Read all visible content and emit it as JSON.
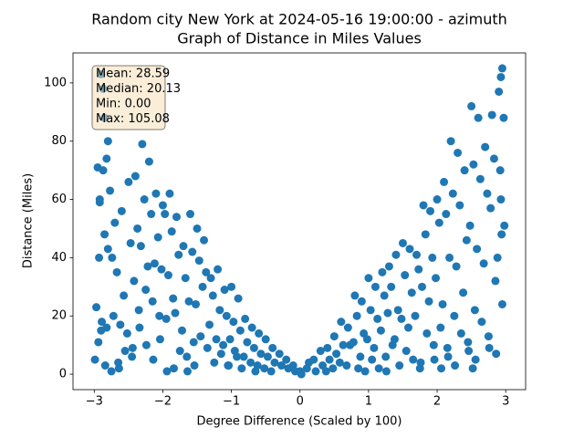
{
  "chart_data": {
    "type": "scatter",
    "title": "Random city New York at 2024-05-16 19:00:00  - azimuth",
    "subtitle": "Graph of Distance in Miles Values",
    "xlabel": "Degree Difference (Scaled by 100)",
    "ylabel": "Distance (Miles)",
    "annotation_lines": [
      "Mean: 28.59",
      "Median: 20.13",
      "Min: 0.00",
      "Max: 105.08"
    ],
    "color": "#1f77b4",
    "xlim": [
      -3.31,
      3.29
    ],
    "ylim": [
      -5.3,
      110.3
    ],
    "xticks": [
      {
        "value": -3,
        "label": "−3"
      },
      {
        "value": -2,
        "label": "−2"
      },
      {
        "value": -1,
        "label": "−1"
      },
      0,
      1,
      2,
      3
    ],
    "yticks": [
      0,
      20,
      40,
      60,
      80,
      100
    ],
    "x": [
      -2.95,
      -2.92,
      -2.97,
      -2.9,
      -2.99,
      -2.94,
      -2.93,
      -2.9,
      -2.87,
      -2.92,
      -2.85,
      -2.85,
      -2.82,
      -2.87,
      -2.8,
      -2.89,
      -2.84,
      -2.8,
      -2.77,
      -2.82,
      -2.75,
      -2.7,
      -2.67,
      -2.72,
      -2.65,
      -2.74,
      -2.6,
      -2.57,
      -2.62,
      -2.55,
      -2.64,
      -2.5,
      -2.47,
      -2.52,
      -2.45,
      -2.4,
      -2.37,
      -2.42,
      -2.35,
      -2.44,
      -2.3,
      -2.27,
      -2.32,
      -2.25,
      -2.34,
      -2.2,
      -2.17,
      -2.22,
      -2.15,
      -2.24,
      -2.1,
      -2.07,
      -2.12,
      -2.05,
      -2.14,
      -2.0,
      -1.97,
      -2.02,
      -1.95,
      -2.04,
      -1.9,
      -1.87,
      -1.92,
      -1.85,
      -1.94,
      -1.8,
      -1.77,
      -1.82,
      -1.75,
      -1.84,
      -1.7,
      -1.67,
      -1.72,
      -1.65,
      -1.6,
      -1.57,
      -1.62,
      -1.55,
      -1.64,
      -1.5,
      -1.47,
      -1.52,
      -1.45,
      -1.54,
      -1.4,
      -1.37,
      -1.42,
      -1.35,
      -1.3,
      -1.27,
      -1.32,
      -1.25,
      -1.2,
      -1.17,
      -1.22,
      -1.15,
      -1.1,
      -1.07,
      -1.12,
      -1.05,
      -1.0,
      -0.97,
      -1.02,
      -0.95,
      -1.04,
      -0.9,
      -0.87,
      -0.92,
      -0.85,
      -0.8,
      -0.77,
      -0.82,
      -0.7,
      -0.67,
      -0.72,
      -0.65,
      -0.6,
      -0.57,
      -0.62,
      -0.5,
      -0.47,
      -0.52,
      -0.4,
      -0.37,
      -0.42,
      -0.3,
      -0.27,
      -0.2,
      -0.17,
      -0.1,
      -0.07,
      0,
      0.02,
      0.1,
      0.13,
      0.2,
      0.23,
      0.3,
      0.33,
      0.4,
      0.43,
      0.38,
      0.5,
      0.53,
      0.48,
      0.6,
      0.63,
      0.58,
      0.7,
      0.73,
      0.68,
      0.8,
      0.83,
      0.78,
      0.85,
      0.9,
      0.93,
      0.88,
      0.95,
      1.0,
      1.03,
      0.98,
      1.05,
      1.1,
      1.13,
      1.08,
      1.15,
      1.2,
      1.23,
      1.18,
      1.25,
      1.3,
      1.33,
      1.28,
      1.35,
      1.26,
      1.4,
      1.43,
      1.38,
      1.45,
      1.5,
      1.53,
      1.48,
      1.55,
      1.6,
      1.63,
      1.58,
      1.65,
      1.7,
      1.73,
      1.68,
      1.75,
      1.8,
      1.83,
      1.78,
      1.85,
      1.76,
      1.9,
      1.93,
      1.88,
      1.95,
      2.0,
      2.03,
      1.98,
      2.05,
      1.96,
      2.1,
      2.13,
      2.08,
      2.15,
      2.06,
      2.2,
      2.23,
      2.18,
      2.25,
      2.16,
      2.3,
      2.33,
      2.28,
      2.35,
      2.26,
      2.4,
      2.43,
      2.38,
      2.45,
      2.5,
      2.53,
      2.48,
      2.55,
      2.46,
      2.52,
      2.6,
      2.63,
      2.58,
      2.65,
      2.56,
      2.7,
      2.73,
      2.68,
      2.75,
      2.8,
      2.83,
      2.78,
      2.85,
      2.76,
      2.9,
      2.93,
      2.88,
      2.95,
      2.86,
      2.95,
      2.93,
      2.97,
      2.92,
      2.98,
      2.94
    ],
    "y": [
      71,
      60,
      23,
      15,
      5,
      11,
      40,
      103,
      98,
      59,
      48,
      88,
      74,
      70,
      43,
      18,
      3,
      80,
      63,
      16,
      1,
      52,
      35,
      20,
      4,
      40,
      56,
      27,
      17,
      8,
      2,
      66,
      45,
      14,
      6,
      68,
      50,
      32,
      22,
      9,
      79,
      60,
      44,
      29,
      16,
      73,
      55,
      37,
      25,
      10,
      62,
      47,
      38,
      20,
      5,
      58,
      55,
      36,
      19,
      12,
      62,
      49,
      34,
      26,
      1,
      54,
      41,
      21,
      8,
      2,
      44,
      33,
      15,
      6,
      55,
      42,
      25,
      11,
      1,
      50,
      39,
      24,
      13,
      3,
      46,
      35,
      30,
      9,
      33,
      27,
      17,
      4,
      36,
      22,
      12,
      7,
      29,
      20,
      10,
      3,
      30,
      18,
      12,
      8,
      3,
      26,
      15,
      6,
      2,
      19,
      11,
      6,
      16,
      9,
      4,
      1,
      14,
      7,
      3,
      12,
      6,
      2,
      9,
      4,
      1,
      7,
      3,
      5,
      2,
      3,
      1,
      1,
      0,
      2,
      4,
      5,
      1,
      8,
      3,
      9,
      5,
      1,
      13,
      7,
      2,
      18,
      10,
      4,
      16,
      10,
      3,
      27,
      20,
      11,
      2,
      25,
      14,
      6,
      1,
      33,
      22,
      12,
      5,
      30,
      19,
      9,
      2,
      35,
      27,
      15,
      6,
      37,
      30,
      21,
      10,
      1,
      41,
      22,
      12,
      3,
      45,
      34,
      19,
      8,
      43,
      28,
      16,
      5,
      41,
      36,
      20,
      2,
      58,
      48,
      30,
      14,
      4,
      56,
      40,
      25,
      10,
      60,
      52,
      33,
      16,
      5,
      66,
      55,
      24,
      9,
      2,
      80,
      62,
      40,
      20,
      6,
      76,
      58,
      37,
      14,
      3,
      70,
      46,
      28,
      11,
      92,
      72,
      51,
      22,
      8,
      2,
      88,
      67,
      43,
      18,
      5,
      78,
      62,
      38,
      13,
      89,
      74,
      57,
      32,
      9,
      97,
      60,
      40,
      24,
      7,
      105,
      102,
      88,
      70,
      51,
      48
    ]
  }
}
